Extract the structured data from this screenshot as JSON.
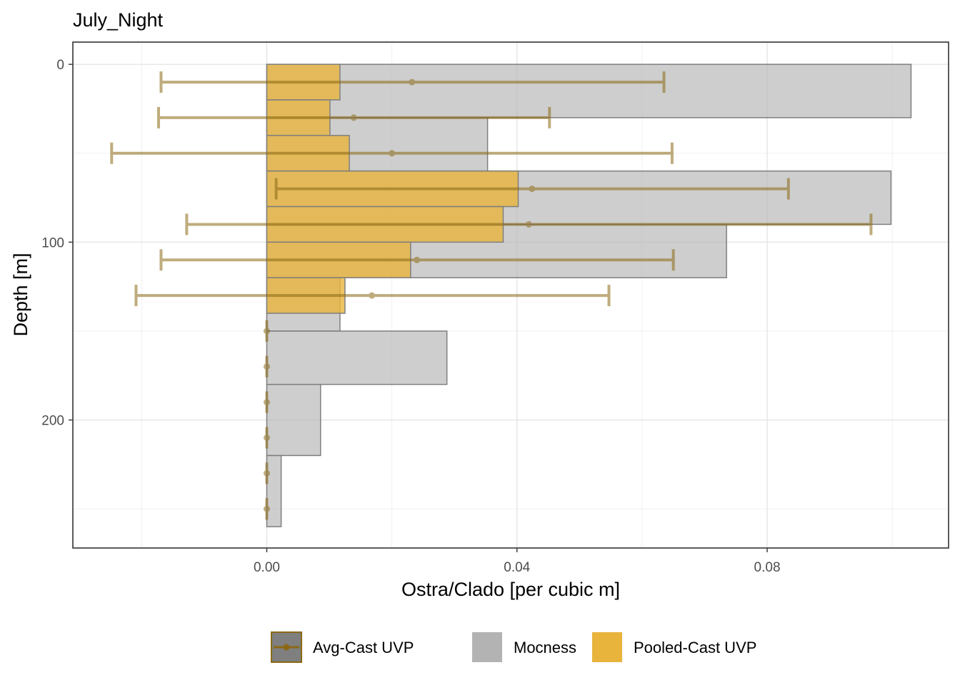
{
  "chart_data": {
    "type": "bar",
    "orientation": "horizontal",
    "title": "July_Night",
    "xlabel": "Ostra/Clado [per cubic m]",
    "ylabel": "Depth [m]",
    "xlim": [
      -0.031,
      0.109
    ],
    "ylim": [
      -12.5,
      272
    ],
    "y_reversed": true,
    "grid": true,
    "x_ticks": [
      0.0,
      0.04,
      0.08
    ],
    "x_tick_labels": [
      "0.00",
      "0.04",
      "0.08"
    ],
    "y_ticks": [
      0,
      100,
      200
    ],
    "y_tick_labels": [
      "0",
      "100",
      "200"
    ],
    "legend_position": "bottom",
    "series": [
      {
        "name": "Mocness",
        "kind": "bars",
        "color": "#b3b3b3",
        "bars": [
          {
            "depth_start": 0,
            "depth_end": 30,
            "value": 0.103
          },
          {
            "depth_start": 30,
            "depth_end": 60,
            "value": 0.0353
          },
          {
            "depth_start": 60,
            "depth_end": 90,
            "value": 0.0998
          },
          {
            "depth_start": 90,
            "depth_end": 120,
            "value": 0.0735
          },
          {
            "depth_start": 120,
            "depth_end": 150,
            "value": 0.0117
          },
          {
            "depth_start": 150,
            "depth_end": 180,
            "value": 0.0288
          },
          {
            "depth_start": 180,
            "depth_end": 220,
            "value": 0.0086
          },
          {
            "depth_start": 220,
            "depth_end": 260,
            "value": 0.0023
          }
        ]
      },
      {
        "name": "Pooled-Cast UVP",
        "kind": "bars",
        "color": "#e8b43c",
        "bars": [
          {
            "depth_start": 0,
            "depth_end": 20,
            "value": 0.0117
          },
          {
            "depth_start": 20,
            "depth_end": 40,
            "value": 0.0101
          },
          {
            "depth_start": 40,
            "depth_end": 60,
            "value": 0.0132
          },
          {
            "depth_start": 60,
            "depth_end": 80,
            "value": 0.0402
          },
          {
            "depth_start": 80,
            "depth_end": 100,
            "value": 0.0378
          },
          {
            "depth_start": 100,
            "depth_end": 120,
            "value": 0.023
          },
          {
            "depth_start": 120,
            "depth_end": 140,
            "value": 0.0125
          }
        ]
      },
      {
        "name": "Avg-Cast UVP",
        "kind": "points_with_errorbars",
        "color": "#8b6914",
        "points": [
          {
            "depth": 10,
            "mean": 0.0232,
            "low": -0.0169,
            "high": 0.0635
          },
          {
            "depth": 30,
            "mean": 0.0139,
            "low": -0.0173,
            "high": 0.0452
          },
          {
            "depth": 50,
            "mean": 0.02,
            "low": -0.0248,
            "high": 0.0648
          },
          {
            "depth": 70,
            "mean": 0.0424,
            "low": 0.0015,
            "high": 0.0834
          },
          {
            "depth": 90,
            "mean": 0.0419,
            "low": -0.0128,
            "high": 0.0966
          },
          {
            "depth": 110,
            "mean": 0.024,
            "low": -0.0169,
            "high": 0.065
          },
          {
            "depth": 130,
            "mean": 0.0168,
            "low": -0.0209,
            "high": 0.0547
          },
          {
            "depth": 150,
            "mean": 0.0,
            "low": 0.0,
            "high": 0.0
          },
          {
            "depth": 170,
            "mean": 0.0,
            "low": 0.0,
            "high": 0.0
          },
          {
            "depth": 190,
            "mean": 0.0,
            "low": 0.0,
            "high": 0.0
          },
          {
            "depth": 210,
            "mean": 0.0,
            "low": 0.0,
            "high": 0.0
          },
          {
            "depth": 230,
            "mean": 0.0,
            "low": 0.0,
            "high": 0.0
          },
          {
            "depth": 250,
            "mean": 0.0,
            "low": 0.0,
            "high": 0.0
          }
        ]
      }
    ],
    "legend": [
      {
        "label": "Avg-Cast UVP",
        "color": "#8b6914"
      },
      {
        "label": "Mocness",
        "color": "#b3b3b3"
      },
      {
        "label": "Pooled-Cast UVP",
        "color": "#e8b43c"
      }
    ]
  }
}
